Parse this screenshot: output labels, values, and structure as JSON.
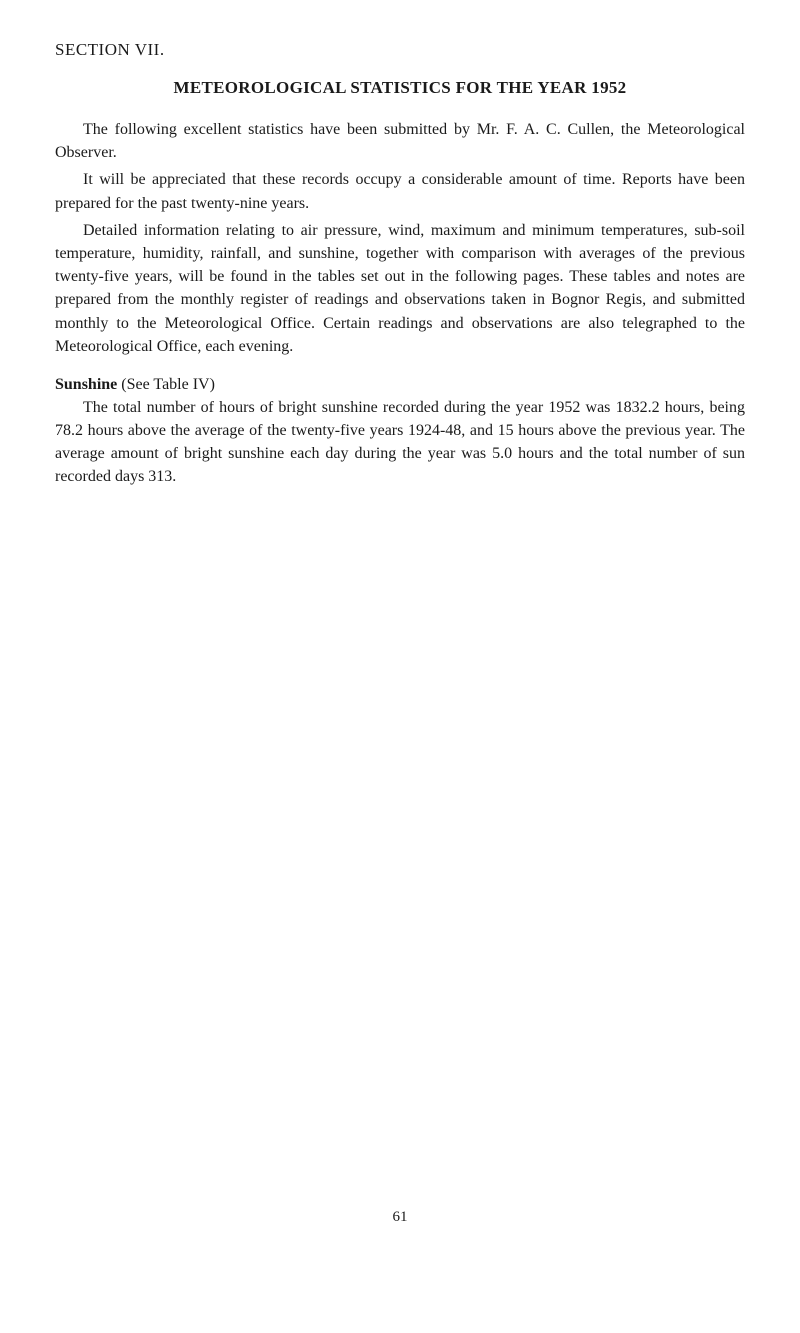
{
  "section_header": "SECTION VII.",
  "title": "METEOROLOGICAL STATISTICS FOR THE YEAR 1952",
  "paragraphs": {
    "p1": "The following excellent statistics have been submitted by Mr. F. A. C. Cullen, the Meteorological Observer.",
    "p2": "It will be appreciated that these records occupy a considerable amount of time. Reports have been prepared for the past twenty-nine years.",
    "p3": "Detailed information relating to air pressure, wind, maximum and minimum temperatures, sub-soil temperature, humidity, rainfall, and sunshine, together with comparison with averages of the previous twenty-five years, will be found in the tables set out in the following pages. These tables and notes are prepared from the monthly register of readings and observations taken in Bognor Regis, and submitted monthly to the Meteorological Office. Certain readings and observations are also telegraphed to the Meteorological Office, each evening."
  },
  "subheading_bold": "Sunshine",
  "subheading_rest": " (See Table IV)",
  "sunshine_paragraph": "The total number of hours of bright sunshine recorded during the year 1952 was 1832.2 hours, being 78.2 hours above the average of the twenty-five years 1924-48, and 15 hours above the previous year. The average amount of bright sunshine each day during the year was 5.0 hours and the total number of sun recorded days 313.",
  "page_number": "61",
  "colors": {
    "background": "#ffffff",
    "text": "#1a1a1a"
  }
}
